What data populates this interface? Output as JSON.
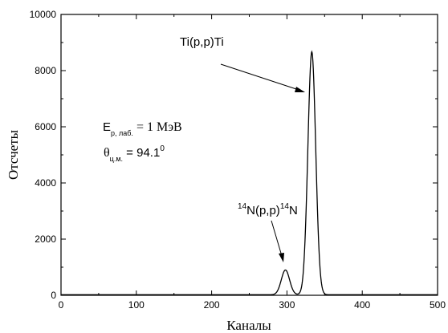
{
  "chart_data": {
    "type": "line",
    "xlabel": "Каналы",
    "ylabel": "Отсчеты",
    "xlim": [
      0,
      500
    ],
    "ylim": [
      0,
      10000
    ],
    "xticks": [
      "0",
      "100",
      "200",
      "300",
      "400",
      "500"
    ],
    "yticks": [
      "0",
      "2000",
      "4000",
      "6000",
      "8000",
      "10000"
    ],
    "grid": false,
    "peaks": [
      {
        "center": 298,
        "height": 880,
        "sigma": 5.5
      },
      {
        "center": 333,
        "height": 8650,
        "sigma": 5.2
      }
    ],
    "baseline": 20,
    "curve_color": "#000000",
    "annotations": {
      "ti_label": "Ti(p,p)Ti",
      "n_pre_sup": "14",
      "n_mid": "N(p,p)",
      "n_post_sup": "14",
      "n_end": "N",
      "energy_main": "E",
      "energy_sub": "p, лаб.",
      "energy_value": " = 1 МэВ",
      "theta_main": "θ",
      "theta_sub": "ц.м.",
      "theta_value": " = 94.1",
      "theta_sup": "0"
    }
  }
}
